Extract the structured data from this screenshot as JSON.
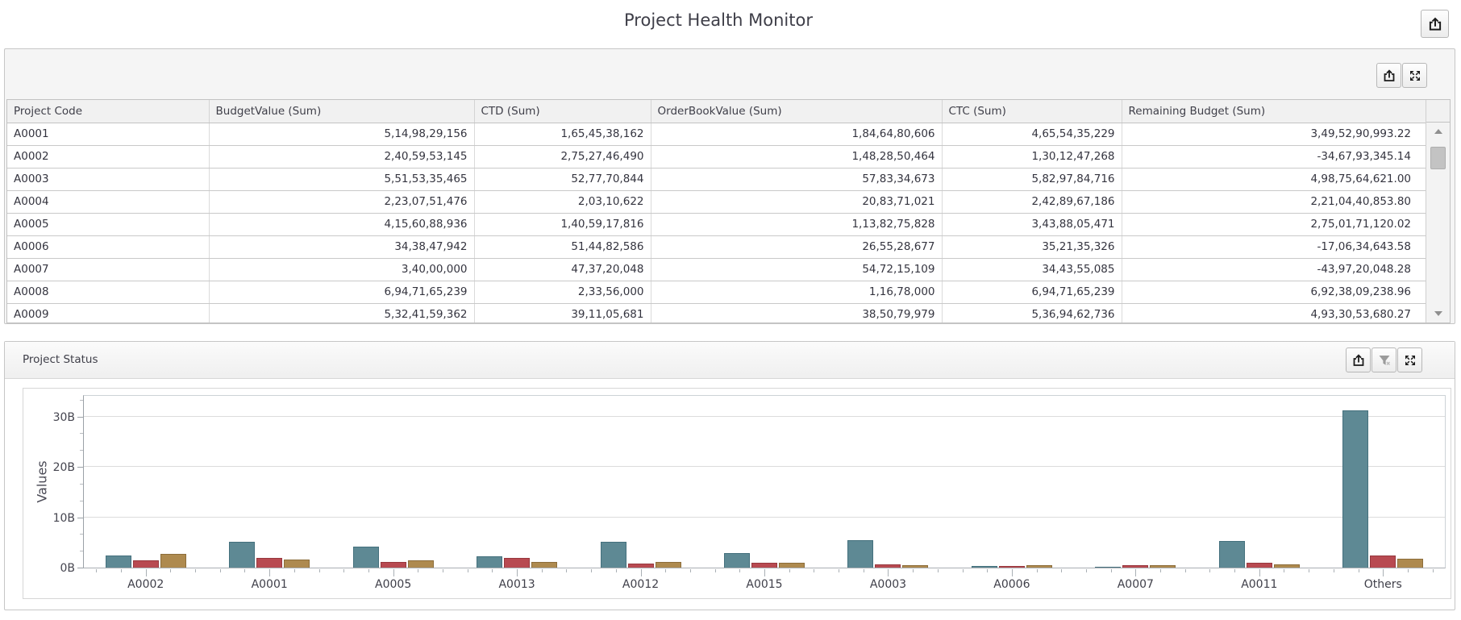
{
  "page": {
    "title": "Project Health Monitor",
    "export_icon": "export-icon"
  },
  "table_panel": {
    "toolbar_icons": [
      "export-icon",
      "maximize-icon"
    ],
    "columns": [
      "Project Code",
      "BudgetValue (Sum)",
      "CTD (Sum)",
      "OrderBookValue (Sum)",
      "CTC (Sum)",
      "Remaining Budget (Sum)"
    ],
    "rows": [
      [
        "A0001",
        "5,14,98,29,156",
        "1,65,45,38,162",
        "1,84,64,80,606",
        "4,65,54,35,229",
        "3,49,52,90,993.22"
      ],
      [
        "A0002",
        "2,40,59,53,145",
        "2,75,27,46,490",
        "1,48,28,50,464",
        "1,30,12,47,268",
        "-34,67,93,345.14"
      ],
      [
        "A0003",
        "5,51,53,35,465",
        "52,77,70,844",
        "57,83,34,673",
        "5,82,97,84,716",
        "4,98,75,64,621.00"
      ],
      [
        "A0004",
        "2,23,07,51,476",
        "2,03,10,622",
        "20,83,71,021",
        "2,42,89,67,186",
        "2,21,04,40,853.80"
      ],
      [
        "A0005",
        "4,15,60,88,936",
        "1,40,59,17,816",
        "1,13,82,75,828",
        "3,43,88,05,471",
        "2,75,01,71,120.02"
      ],
      [
        "A0006",
        "34,38,47,942",
        "51,44,82,586",
        "26,55,28,677",
        "35,21,35,326",
        "-17,06,34,643.58"
      ],
      [
        "A0007",
        "3,40,00,000",
        "47,37,20,048",
        "54,72,15,109",
        "34,43,55,085",
        "-43,97,20,048.28"
      ],
      [
        "A0008",
        "6,94,71,65,239",
        "2,33,56,000",
        "1,16,78,000",
        "6,94,71,65,239",
        "6,92,38,09,238.96"
      ],
      [
        "A0009",
        "5,32,41,59,362",
        "39,11,05,681",
        "38,50,79,979",
        "5,36,94,62,736",
        "4,93,30,53,680.27"
      ]
    ],
    "scrollbar": {
      "up_icon": "scroll-up-icon",
      "down_icon": "scroll-down-icon"
    }
  },
  "chart_panel": {
    "title": "Project Status",
    "toolbar_icons": [
      "export-icon",
      "filter-icon",
      "maximize-icon"
    ],
    "chart_data": {
      "type": "bar",
      "title": "Project Status",
      "xlabel": "",
      "ylabel": "Values",
      "unit": "billions",
      "grid": true,
      "legend_position": "none",
      "ylim": [
        0,
        34.4
      ],
      "yticks": [
        {
          "label": "0B",
          "value": 0
        },
        {
          "label": "10B",
          "value": 10
        },
        {
          "label": "20B",
          "value": 20
        },
        {
          "label": "30B",
          "value": 30
        }
      ],
      "categories": [
        "A0002",
        "A0001",
        "A0005",
        "A0013",
        "A0012",
        "A0015",
        "A0003",
        "A0006",
        "A0007",
        "A0011",
        "Others"
      ],
      "series": [
        {
          "name": "teal-series",
          "color": "#5e8994",
          "border": "#44707d",
          "values": [
            2.4,
            5.15,
            4.15,
            2.3,
            5.2,
            2.85,
            5.5,
            0.35,
            0.05,
            5.3,
            31.2
          ]
        },
        {
          "name": "red-series",
          "color": "#b84a51",
          "border": "#97383e",
          "values": [
            1.5,
            1.85,
            1.15,
            2.0,
            0.75,
            1.0,
            0.6,
            0.27,
            0.55,
            0.9,
            2.35
          ]
        },
        {
          "name": "gold-series",
          "color": "#ae8a4f",
          "border": "#8c6d3a",
          "values": [
            2.75,
            1.65,
            1.4,
            1.15,
            1.05,
            0.95,
            0.55,
            0.5,
            0.5,
            0.65,
            1.7
          ]
        }
      ]
    }
  },
  "colors": {
    "panel_border": "#c6c6c6",
    "header_strip": "#f1f1f1",
    "grid_line": "#dcdcdc",
    "bar_teal": "#5e8994",
    "bar_red": "#b84a51",
    "bar_gold": "#ae8a4f"
  }
}
